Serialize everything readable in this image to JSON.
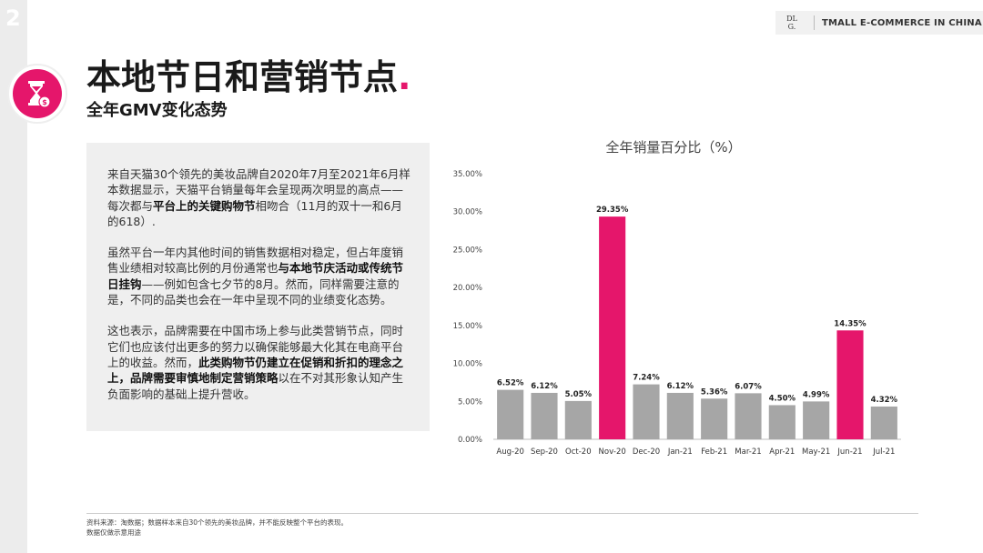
{
  "page_number": "2",
  "header": {
    "logo_line1": "DL",
    "logo_line2": "G.",
    "text": "TMALL E-COMMERCE IN CHINA"
  },
  "icon": "hourglass-money-icon",
  "accent_color": "#e5166b",
  "title": "本地节日和营销节点",
  "title_dot": ".",
  "subtitle": "全年GMV变化态势",
  "body": {
    "p1": [
      {
        "t": "来自天猫30个领先的美妆品牌自2020年7月至2021年6月样本数据显示，天猫平台销量每年会呈现两次明显的高点——每次都与",
        "b": false
      },
      {
        "t": "平台上的关键购物节",
        "b": true
      },
      {
        "t": "相吻合（11月的双十一和6月的618）.",
        "b": false
      }
    ],
    "p2": [
      {
        "t": "虽然平台一年内其他时间的销售数据相对稳定，但占年度销售业绩相对较高比例的月份通常也",
        "b": false
      },
      {
        "t": "与本地节庆活动或传统节日挂钩",
        "b": true
      },
      {
        "t": "——例如包含七夕节的8月。然而，同样需要注意的是，不同的品类也会在一年中呈现不同的业绩变化态势。",
        "b": false
      }
    ],
    "p3": [
      {
        "t": "这也表示，品牌需要在中国市场上参与此类营销节点，同时它们也应该付出更多的努力以确保能够最大化其在电商平台上的收益。然而，",
        "b": false
      },
      {
        "t": "此类购物节仍建立在促销和折扣的理念之上，品牌需要审慎地制定营销策略",
        "b": true
      },
      {
        "t": "以在不对其形象认知产生负面影响的基础上提升营收。",
        "b": false
      }
    ]
  },
  "chart_data": {
    "type": "bar",
    "title": "全年销量百分比（%）",
    "categories": [
      "Aug-20",
      "Sep-20",
      "Oct-20",
      "Nov-20",
      "Dec-20",
      "Jan-21",
      "Feb-21",
      "Mar-21",
      "Apr-21",
      "May-21",
      "Jun-21",
      "Jul-21"
    ],
    "values": [
      6.52,
      6.12,
      5.05,
      29.35,
      7.24,
      6.12,
      5.36,
      6.07,
      4.5,
      4.99,
      14.35,
      4.32
    ],
    "value_labels": [
      "6.52%",
      "6.12%",
      "5.05%",
      "29.35%",
      "7.24%",
      "6.12%",
      "5.36%",
      "6.07%",
      "4.50%",
      "4.99%",
      "14.35%",
      "4.32%"
    ],
    "highlight": [
      false,
      false,
      false,
      true,
      false,
      false,
      false,
      false,
      false,
      false,
      true,
      false
    ],
    "ylim": [
      0,
      35
    ],
    "yticks": [
      0,
      5,
      10,
      15,
      20,
      25,
      30,
      35
    ],
    "ytick_labels": [
      "0.00%",
      "5.00%",
      "10.00%",
      "15.00%",
      "20.00%",
      "25.00%",
      "30.00%",
      "35.00%"
    ],
    "bar_color": "#a6a6a6",
    "highlight_color": "#e5166b",
    "grid": false,
    "xlabel": "",
    "ylabel": ""
  },
  "footer": {
    "line1": "资料来源：淘数据；数据样本来自30个领先的美妆品牌，并不能反映整个平台的表现。",
    "line2": "数据仅做示意用途"
  }
}
